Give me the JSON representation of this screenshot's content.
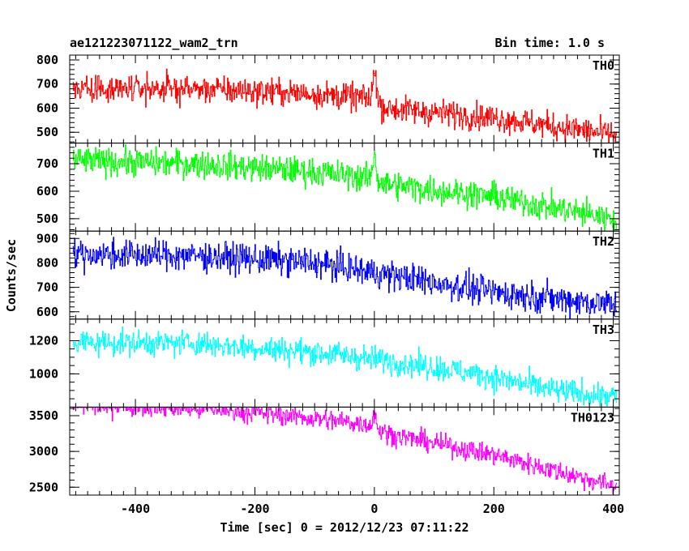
{
  "header": {
    "title": "ae121223071122_wam2_trn",
    "bin_time": "Bin time: 1.0 s"
  },
  "chart_data": {
    "type": "line",
    "xlabel": "Time [sec] 0 = 2012/12/23 07:11:22",
    "ylabel": "Counts/sec",
    "xlim": [
      -510,
      410
    ],
    "x_ticks": [
      "-400",
      "-200",
      "0",
      "200",
      "400"
    ],
    "x_step": 1.0,
    "grid": false,
    "panels": [
      {
        "name": "TH0",
        "color": "#ff0000",
        "ylim": [
          455,
          820
        ],
        "y_ticks": [
          "800",
          "700",
          "600",
          "500"
        ],
        "trend": [
          [
            -505,
            685
          ],
          [
            -300,
            680
          ],
          [
            -100,
            660
          ],
          [
            -10,
            640
          ],
          [
            20,
            600
          ],
          [
            200,
            560
          ],
          [
            400,
            490
          ]
        ],
        "noise": 55,
        "spike": {
          "x": 0,
          "width": 5,
          "peak": 815
        }
      },
      {
        "name": "TH1",
        "color": "#00ff00",
        "ylim": [
          455,
          775
        ],
        "y_ticks": [
          "700",
          "600",
          "500"
        ],
        "trend": [
          [
            -505,
            710
          ],
          [
            -300,
            700
          ],
          [
            -100,
            670
          ],
          [
            -10,
            650
          ],
          [
            20,
            625
          ],
          [
            200,
            580
          ],
          [
            400,
            500
          ]
        ],
        "noise": 50,
        "spike": {
          "x": 0,
          "width": 5,
          "peak": 760
        }
      },
      {
        "name": "TH2",
        "color": "#0000ff",
        "ylim": [
          570,
          930
        ],
        "y_ticks": [
          "900",
          "800",
          "700",
          "600"
        ],
        "trend": [
          [
            -505,
            835
          ],
          [
            -300,
            830
          ],
          [
            -100,
            800
          ],
          [
            0,
            760
          ],
          [
            100,
            720
          ],
          [
            200,
            680
          ],
          [
            400,
            630
          ]
        ],
        "noise": 60,
        "spike": null
      },
      {
        "name": "TH3",
        "color": "#00ffff",
        "ylim": [
          800,
          1330
        ],
        "y_ticks": [
          "1200",
          "1000"
        ],
        "trend": [
          [
            -505,
            1190
          ],
          [
            -300,
            1185
          ],
          [
            -100,
            1130
          ],
          [
            0,
            1090
          ],
          [
            100,
            1040
          ],
          [
            200,
            980
          ],
          [
            300,
            900
          ],
          [
            400,
            860
          ]
        ],
        "noise": 75,
        "spike": null
      },
      {
        "name": "TH0123",
        "color": "#ff00ff",
        "ylim": [
          2390,
          3620
        ],
        "y_ticks": [
          "3500",
          "3000",
          "2500"
        ],
        "trend": [
          [
            -505,
            3660
          ],
          [
            -400,
            3640
          ],
          [
            -200,
            3550
          ],
          [
            -10,
            3380
          ],
          [
            20,
            3250
          ],
          [
            200,
            2950
          ],
          [
            400,
            2520
          ]
        ],
        "noise": 140,
        "spike": {
          "x": 0,
          "width": 5,
          "peak": 3590
        }
      }
    ]
  }
}
